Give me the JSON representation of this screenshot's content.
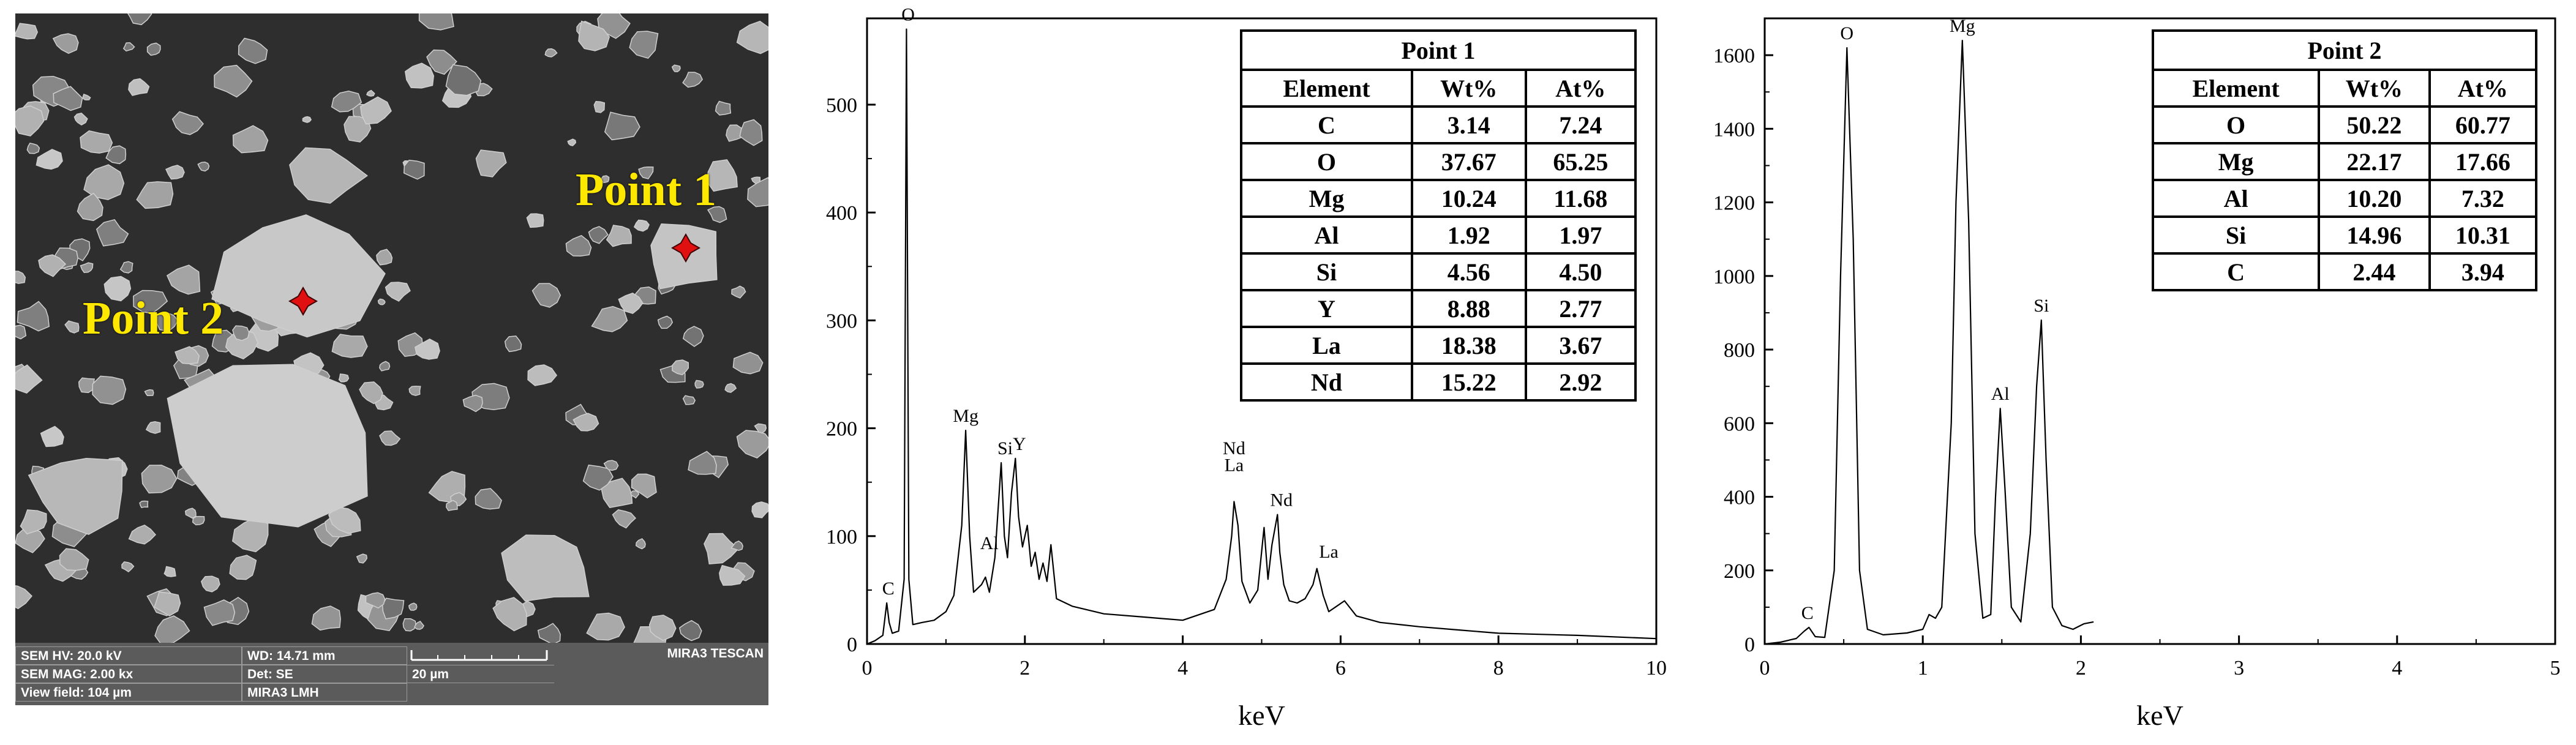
{
  "sem_image": {
    "point1_label": "Point 1",
    "point2_label": "Point 2",
    "marker_color": "#e01010",
    "label_color": "#ffe800",
    "info_bar": {
      "hv": "SEM HV: 20.0 kV",
      "wd": "WD: 14.71 mm",
      "mag": "SEM MAG: 2.00 kx",
      "det": "Det: SE",
      "scale": "20 µm",
      "field": "View field: 104 µm",
      "model": "MIRA3 LMH",
      "brand": "MIRA3 TESCAN"
    }
  },
  "chart_data": [
    {
      "type": "line",
      "xlabel": "keV",
      "ylabel": "",
      "xlim": [
        0,
        10
      ],
      "ylim": [
        0,
        580
      ],
      "xticks": [
        0,
        2,
        4,
        6,
        8,
        10
      ],
      "yticks": [
        0,
        100,
        200,
        300,
        400,
        500
      ],
      "series": [
        {
          "x": [
            0,
            0.1,
            0.2,
            0.25,
            0.28,
            0.32,
            0.4,
            0.47,
            0.5,
            0.53,
            0.58,
            0.7,
            0.85,
            1.0,
            1.1,
            1.2,
            1.25,
            1.3,
            1.35,
            1.45,
            1.5,
            1.55,
            1.62,
            1.7,
            1.74,
            1.78,
            1.83,
            1.88,
            1.92,
            1.97,
            2.03,
            2.08,
            2.13,
            2.18,
            2.23,
            2.28,
            2.33,
            2.4,
            2.6,
            3.0,
            3.5,
            4.0,
            4.4,
            4.55,
            4.62,
            4.65,
            4.7,
            4.75,
            4.85,
            4.95,
            5.03,
            5.08,
            5.13,
            5.2,
            5.23,
            5.28,
            5.35,
            5.45,
            5.55,
            5.65,
            5.7,
            5.78,
            5.85,
            5.95,
            6.05,
            6.2,
            6.5,
            7.0,
            7.5,
            8.0,
            9.0,
            10.0
          ],
          "y": [
            0,
            3,
            8,
            38,
            20,
            10,
            12,
            60,
            570,
            60,
            18,
            20,
            22,
            30,
            45,
            110,
            198,
            100,
            48,
            55,
            62,
            48,
            80,
            168,
            100,
            80,
            140,
            172,
            118,
            90,
            110,
            72,
            85,
            60,
            75,
            58,
            92,
            42,
            35,
            28,
            25,
            22,
            32,
            60,
            100,
            132,
            110,
            58,
            38,
            50,
            108,
            60,
            92,
            120,
            85,
            55,
            40,
            38,
            42,
            55,
            70,
            45,
            30,
            35,
            40,
            26,
            20,
            16,
            13,
            10,
            8,
            5
          ]
        }
      ],
      "peak_labels": [
        {
          "text": "C",
          "x": 0.27,
          "y": 38
        },
        {
          "text": "O",
          "x": 0.52,
          "y": 570
        },
        {
          "text": "Mg",
          "x": 1.25,
          "y": 198
        },
        {
          "text": "Al",
          "x": 1.55,
          "y": 80
        },
        {
          "text": "Si",
          "x": 1.75,
          "y": 168
        },
        {
          "text": "Y",
          "x": 1.93,
          "y": 172
        },
        {
          "text": "Nd",
          "x": 4.65,
          "y": 168
        },
        {
          "text": "La",
          "x": 4.65,
          "y": 132
        },
        {
          "text": "Nd",
          "x": 5.25,
          "y": 120
        },
        {
          "text": "La",
          "x": 5.85,
          "y": 72
        }
      ],
      "table": {
        "title": "Point 1",
        "headers": [
          "Element",
          "Wt%",
          "At%"
        ],
        "rows": [
          [
            "C",
            "3.14",
            "7.24"
          ],
          [
            "O",
            "37.67",
            "65.25"
          ],
          [
            "Mg",
            "10.24",
            "11.68"
          ],
          [
            "Al",
            "1.92",
            "1.97"
          ],
          [
            "Si",
            "4.56",
            "4.50"
          ],
          [
            "Y",
            "8.88",
            "2.77"
          ],
          [
            "La",
            "18.38",
            "3.67"
          ],
          [
            "Nd",
            "15.22",
            "2.92"
          ]
        ]
      }
    },
    {
      "type": "line",
      "xlabel": "keV",
      "ylabel": "",
      "xlim": [
        0,
        5
      ],
      "ylim": [
        0,
        1700
      ],
      "xticks": [
        0,
        1,
        2,
        3,
        4,
        5
      ],
      "yticks": [
        0,
        200,
        400,
        600,
        800,
        1000,
        1200,
        1400,
        1600
      ],
      "series": [
        {
          "x": [
            0,
            0.1,
            0.2,
            0.25,
            0.28,
            0.32,
            0.38,
            0.44,
            0.48,
            0.52,
            0.56,
            0.6,
            0.65,
            0.75,
            0.9,
            1.0,
            1.04,
            1.08,
            1.12,
            1.18,
            1.21,
            1.25,
            1.29,
            1.33,
            1.38,
            1.43,
            1.46,
            1.49,
            1.52,
            1.56,
            1.62,
            1.68,
            1.72,
            1.75,
            1.78,
            1.82,
            1.88,
            1.95,
            2.02,
            2.08
          ],
          "y": [
            0,
            5,
            15,
            35,
            45,
            20,
            18,
            200,
            1000,
            1620,
            1100,
            200,
            40,
            25,
            30,
            40,
            80,
            70,
            100,
            600,
            1200,
            1640,
            1150,
            300,
            70,
            80,
            400,
            640,
            420,
            100,
            60,
            300,
            700,
            880,
            500,
            100,
            50,
            40,
            55,
            60
          ]
        }
      ],
      "peak_labels": [
        {
          "text": "C",
          "x": 0.27,
          "y": 45
        },
        {
          "text": "O",
          "x": 0.52,
          "y": 1620
        },
        {
          "text": "Mg",
          "x": 1.25,
          "y": 1640
        },
        {
          "text": "Al",
          "x": 1.49,
          "y": 640
        },
        {
          "text": "Si",
          "x": 1.75,
          "y": 880
        }
      ],
      "table": {
        "title": "Point 2",
        "headers": [
          "Element",
          "Wt%",
          "At%"
        ],
        "rows": [
          [
            "O",
            "50.22",
            "60.77"
          ],
          [
            "Mg",
            "22.17",
            "17.66"
          ],
          [
            "Al",
            "10.20",
            "7.32"
          ],
          [
            "Si",
            "14.96",
            "10.31"
          ],
          [
            "C",
            "2.44",
            "3.94"
          ]
        ]
      }
    }
  ]
}
